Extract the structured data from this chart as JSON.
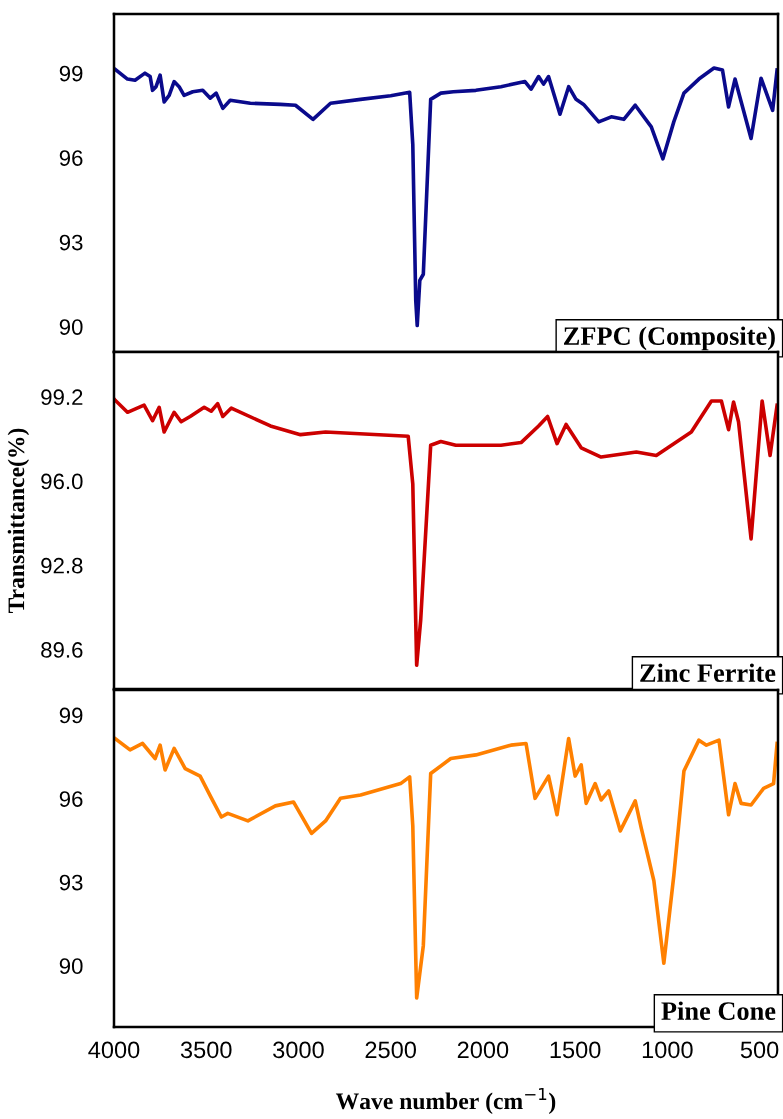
{
  "chart_data": [
    {
      "type": "line",
      "tick_labels": "y",
      "xlim": [
        4000,
        400
      ],
      "ylim": [
        89.1,
        101.1
      ],
      "yticks": [
        90,
        93,
        96,
        99
      ],
      "grid": false,
      "legend": false,
      "series": [
        {
          "name": "ZFPC (Composite)",
          "color": "#0a0a8c",
          "x": [
            3995,
            3927,
            3886,
            3832,
            3804,
            3791,
            3772,
            3750,
            3728,
            3701,
            3674,
            3647,
            3620,
            3573,
            3519,
            3478,
            3446,
            3410,
            3370,
            3261,
            3098,
            3016,
            2921,
            2826,
            2663,
            2500,
            2397,
            2380,
            2364,
            2356,
            2342,
            2323,
            2283,
            2228,
            2160,
            2038,
            1902,
            1772,
            1739,
            1698,
            1671,
            1644,
            1582,
            1535,
            1495,
            1454,
            1372,
            1304,
            1236,
            1174,
            1087,
            1024,
            965,
            910,
            829,
            747,
            701,
            668,
            633,
            546,
            492,
            429,
            405
          ],
          "values": [
            99.14,
            98.79,
            98.75,
            99.0,
            98.88,
            98.39,
            98.52,
            98.93,
            97.98,
            98.21,
            98.7,
            98.52,
            98.21,
            98.34,
            98.39,
            98.11,
            98.29,
            97.75,
            98.04,
            97.93,
            97.89,
            97.86,
            97.36,
            97.93,
            98.07,
            98.2,
            98.32,
            96.46,
            90.93,
            90.04,
            91.64,
            91.86,
            98.07,
            98.29,
            98.34,
            98.39,
            98.52,
            98.7,
            98.43,
            98.88,
            98.61,
            98.88,
            97.54,
            98.52,
            98.07,
            97.89,
            97.27,
            97.45,
            97.36,
            97.86,
            97.09,
            95.96,
            97.27,
            98.29,
            98.79,
            99.18,
            99.11,
            97.8,
            98.79,
            96.68,
            98.82,
            97.68,
            99.11
          ]
        }
      ]
    },
    {
      "type": "line",
      "tick_labels": "y",
      "ylabel": "Transmittance(%)",
      "xlim": [
        4000,
        400
      ],
      "ylim": [
        88.1,
        100.9
      ],
      "yticks": [
        {
          "value": 89.6,
          "label": "89.6"
        },
        {
          "value": 92.8,
          "label": "92.8"
        },
        {
          "value": 96.0,
          "label": "96.0"
        },
        {
          "value": 99.2,
          "label": "99.2"
        }
      ],
      "grid": false,
      "legend": false,
      "series": [
        {
          "name": "Zinc Ferrite",
          "color": "#cc0000",
          "x": [
            3995,
            3927,
            3837,
            3791,
            3755,
            3728,
            3674,
            3636,
            3587,
            3511,
            3473,
            3438,
            3410,
            3364,
            3152,
            2989,
            2853,
            2405,
            2380,
            2359,
            2337,
            2283,
            2228,
            2147,
            1902,
            1793,
            1698,
            1649,
            1598,
            1549,
            1467,
            1359,
            1168,
            1060,
            870,
            761,
            707,
            668,
            641,
            614,
            546,
            486,
            443,
            405
          ],
          "values": [
            99.08,
            98.61,
            98.88,
            98.29,
            98.8,
            97.86,
            98.61,
            98.25,
            98.45,
            98.8,
            98.65,
            98.94,
            98.45,
            98.77,
            98.09,
            97.76,
            97.86,
            97.7,
            95.88,
            89.0,
            90.74,
            97.36,
            97.5,
            97.36,
            97.36,
            97.46,
            98.09,
            98.45,
            97.42,
            98.15,
            97.26,
            96.91,
            97.1,
            96.97,
            97.86,
            99.04,
            99.04,
            97.95,
            99.0,
            98.25,
            93.8,
            99.04,
            96.97,
            98.88
          ]
        }
      ]
    },
    {
      "type": "line",
      "xlabel": "Wave number (cm$^{−1}$)",
      "xlim": [
        4000,
        400
      ],
      "xticks": [
        4000,
        3500,
        3000,
        2500,
        2000,
        1500,
        1000,
        500
      ],
      "ylim": [
        87.8,
        99.9
      ],
      "yticks": [
        90,
        93,
        96,
        99
      ],
      "grid": false,
      "legend": false,
      "series": [
        {
          "name": "Pine Cone",
          "color": "#ff8000",
          "x": [
            3995,
            3913,
            3845,
            3777,
            3750,
            3723,
            3674,
            3614,
            3533,
            3478,
            3418,
            3383,
            3274,
            3125,
            3027,
            2929,
            2853,
            2772,
            2663,
            2446,
            2397,
            2380,
            2359,
            2323,
            2283,
            2174,
            2038,
            1848,
            1766,
            1717,
            1644,
            1598,
            1535,
            1500,
            1467,
            1440,
            1391,
            1359,
            1318,
            1255,
            1174,
            1141,
            1073,
            1019,
            965,
            910,
            829,
            788,
            720,
            668,
            633,
            600,
            546,
            478,
            424,
            405
          ],
          "values": [
            98.16,
            97.75,
            97.98,
            97.44,
            97.92,
            97.03,
            97.8,
            97.08,
            96.81,
            96.1,
            95.34,
            95.47,
            95.2,
            95.74,
            95.88,
            94.75,
            95.2,
            96.01,
            96.13,
            96.54,
            96.78,
            95.02,
            88.84,
            90.72,
            96.9,
            97.44,
            97.57,
            97.92,
            97.98,
            96.01,
            96.81,
            95.42,
            98.16,
            96.81,
            97.21,
            95.83,
            96.54,
            95.95,
            96.28,
            94.84,
            95.92,
            94.93,
            93.05,
            90.09,
            93.23,
            96.99,
            98.1,
            97.92,
            98.1,
            95.42,
            96.54,
            95.83,
            95.77,
            96.37,
            96.54,
            97.98
          ]
        }
      ]
    }
  ]
}
